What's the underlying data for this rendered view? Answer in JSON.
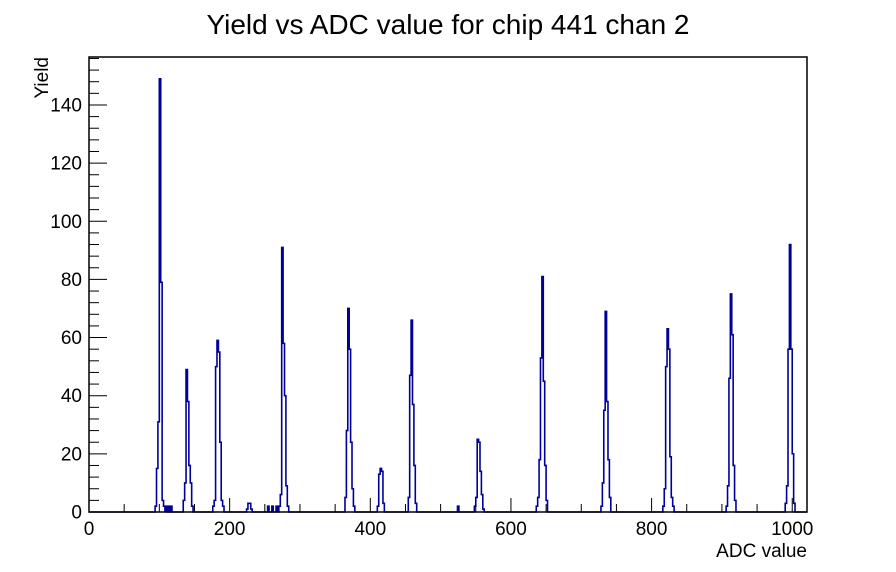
{
  "page": {
    "background": "#ffffff",
    "text_color": "#000000"
  },
  "chart_data": {
    "type": "bar",
    "style": "root-histogram-outline",
    "title": "Yield vs ADC value for chip 441 chan 2",
    "xlabel": "ADC value",
    "ylabel": "Yield",
    "x_range": [
      0,
      1021
    ],
    "y_range": [
      0,
      156.5
    ],
    "x_major_ticks": [
      0,
      200,
      400,
      600,
      800,
      1000
    ],
    "x_minor_step": 50,
    "y_major_ticks": [
      0,
      20,
      40,
      60,
      80,
      100,
      120,
      140
    ],
    "y_minor_step": 4,
    "grid": false,
    "legend": "none",
    "line_color": "#000099",
    "axis_color": "#000000",
    "bin_width": 2,
    "peaks": [
      {
        "adc": 100,
        "yield": 149
      },
      {
        "adc": 138,
        "yield": 49
      },
      {
        "adc": 183,
        "yield": 59
      },
      {
        "adc": 228,
        "yield": 3
      },
      {
        "adc": 275,
        "yield": 91
      },
      {
        "adc": 368,
        "yield": 70
      },
      {
        "adc": 414,
        "yield": 15
      },
      {
        "adc": 459,
        "yield": 66
      },
      {
        "adc": 553,
        "yield": 25
      },
      {
        "adc": 645,
        "yield": 81
      },
      {
        "adc": 735,
        "yield": 69
      },
      {
        "adc": 823,
        "yield": 63
      },
      {
        "adc": 913,
        "yield": 75
      },
      {
        "adc": 997,
        "yield": 92
      }
    ],
    "clusters": [
      {
        "start_adc": 94,
        "heights": [
          2,
          15,
          31,
          149,
          79,
          4,
          2
        ]
      },
      {
        "start_adc": 108,
        "heights": [
          2
        ]
      },
      {
        "start_adc": 112,
        "heights": [
          2
        ]
      },
      {
        "start_adc": 116,
        "heights": [
          2
        ]
      },
      {
        "start_adc": 134,
        "heights": [
          4,
          10,
          49,
          38,
          16,
          10,
          2
        ]
      },
      {
        "start_adc": 176,
        "heights": [
          2,
          4,
          50,
          59,
          55,
          24,
          4,
          2
        ]
      },
      {
        "start_adc": 224,
        "heights": [
          1,
          3,
          3,
          1
        ]
      },
      {
        "start_adc": 254,
        "heights": [
          2
        ]
      },
      {
        "start_adc": 260,
        "heights": [
          2
        ]
      },
      {
        "start_adc": 266,
        "heights": [
          2
        ]
      },
      {
        "start_adc": 270,
        "heights": [
          2,
          6,
          91,
          58,
          40,
          9,
          2
        ]
      },
      {
        "start_adc": 364,
        "heights": [
          5,
          28,
          70,
          56,
          24,
          8,
          2
        ]
      },
      {
        "start_adc": 410,
        "heights": [
          2,
          13,
          15,
          14,
          3
        ]
      },
      {
        "start_adc": 454,
        "heights": [
          5,
          47,
          66,
          37,
          16,
          3
        ]
      },
      {
        "start_adc": 524,
        "heights": [
          2
        ]
      },
      {
        "start_adc": 548,
        "heights": [
          2,
          5,
          25,
          24,
          14,
          6,
          1
        ]
      },
      {
        "start_adc": 636,
        "heights": [
          2,
          5,
          18,
          53,
          81,
          45,
          16,
          4
        ]
      },
      {
        "start_adc": 728,
        "heights": [
          2,
          10,
          35,
          69,
          38,
          18,
          5
        ]
      },
      {
        "start_adc": 816,
        "heights": [
          2,
          8,
          50,
          63,
          56,
          19,
          5,
          2
        ]
      },
      {
        "start_adc": 906,
        "heights": [
          2,
          9,
          46,
          75,
          61,
          16,
          4
        ]
      },
      {
        "start_adc": 990,
        "heights": [
          3,
          9,
          56,
          92,
          56,
          20,
          3
        ]
      }
    ]
  }
}
